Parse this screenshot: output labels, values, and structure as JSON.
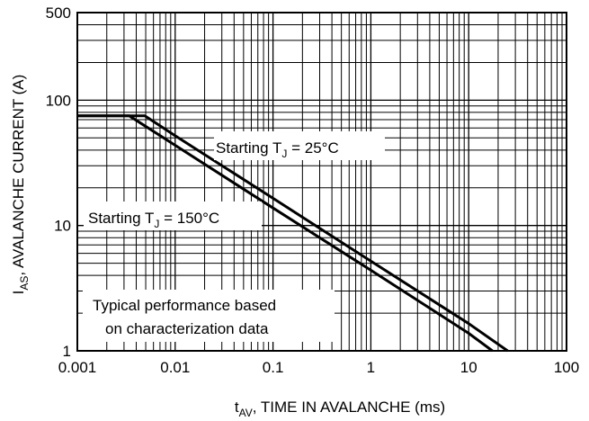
{
  "chart_data": {
    "type": "line",
    "xscale": "log",
    "yscale": "log",
    "xlim": [
      0.001,
      100
    ],
    "ylim": [
      1,
      500
    ],
    "grid": true,
    "xlabel": {
      "main": "t",
      "sub": "AV",
      "rest": ", TIME IN AVALANCHE (ms)"
    },
    "ylabel": {
      "main": "I",
      "sub": "AS",
      "rest": ", AVALANCHE CURRENT (A)"
    },
    "x_tick_labels": [
      "0.001",
      "0.01",
      "0.1",
      "1",
      "10",
      "100"
    ],
    "y_tick_labels": [
      "1",
      "10",
      "100",
      "500"
    ],
    "series": [
      {
        "x": [
          0.001,
          0.0049,
          0.01,
          0.1,
          1,
          10,
          25
        ],
        "y": [
          75,
          75,
          52,
          16.5,
          5.2,
          1.65,
          1.0
        ]
      },
      {
        "x": [
          0.001,
          0.0034,
          0.01,
          0.1,
          1,
          10,
          17.5
        ],
        "y": [
          75,
          75,
          43.7,
          13.8,
          4.4,
          1.38,
          1.0
        ]
      }
    ],
    "annotations": [
      {
        "prefix": "Starting T",
        "sub": "J",
        "suffix": " = 25°C"
      },
      {
        "prefix": "Starting T",
        "sub": "J",
        "suffix": " = 150°C"
      },
      {
        "lines": [
          "Typical performance based",
          "on characterization data"
        ]
      }
    ]
  }
}
